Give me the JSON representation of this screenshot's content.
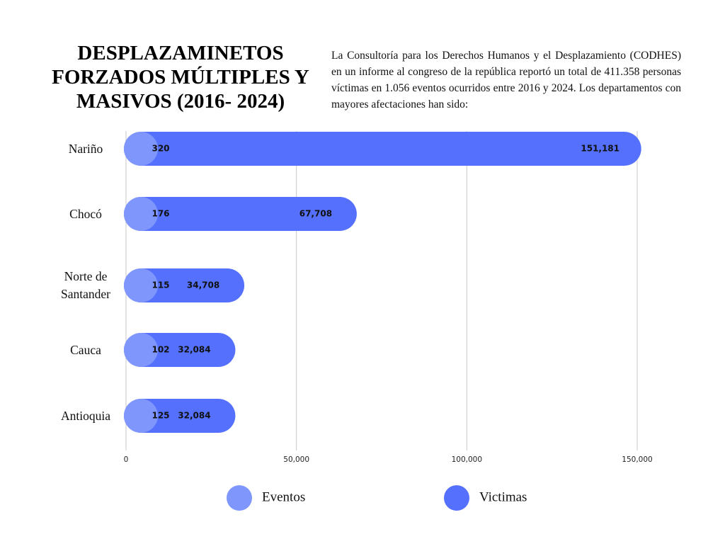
{
  "chart_data": {
    "type": "bar",
    "orientation": "horizontal",
    "overlap": true,
    "title": "DESPLAZAMINETOS FORZADOS MÚLTIPLES Y MASIVOS (2016- 2024)",
    "subtitle": "La Consultoría para los Derechos Humanos y el Desplazamiento (CODHES) en un informe al congreso de la república reportó un total de 411.358 personas víctimas en 1.056 eventos ocurridos entre 2016 y 2024. Los departamentos con mayores afectaciones han sido:",
    "categories": [
      "Nariño",
      "Chocó",
      "Norte de Santander",
      "Cauca",
      "Antioquia"
    ],
    "series": [
      {
        "name": "Eventos",
        "color": "#7f96fd",
        "values": [
          320,
          176,
          115,
          102,
          125
        ]
      },
      {
        "name": "Victimas",
        "color": "#5470fc",
        "values": [
          151181,
          67708,
          34708,
          32084,
          32084
        ],
        "value_labels": [
          "151,181",
          "67,708",
          "34,708",
          "32,084",
          "32,084"
        ]
      }
    ],
    "xlim": [
      0,
      150000
    ],
    "xticks": [
      0,
      {
        "value": 50000,
        "label": "50,000"
      },
      {
        "value": 100000,
        "label": "100,000"
      },
      {
        "value": 150000,
        "label": "150,000"
      }
    ],
    "grid": true
  }
}
